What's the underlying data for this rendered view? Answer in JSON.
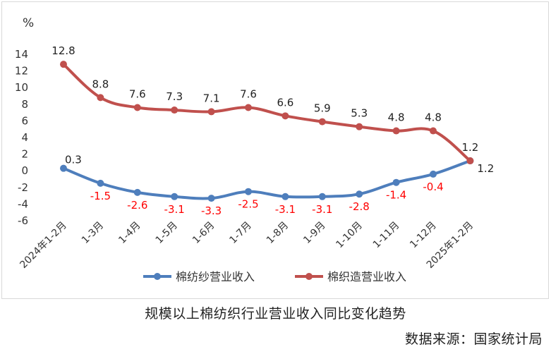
{
  "chart_data": {
    "type": "line",
    "title": "规模以上棉纺织行业营业收入同比变化趋势",
    "source": "数据来源：国家统计局",
    "ylabel": "%",
    "ylim": [
      -6,
      14
    ],
    "yticks": [
      -6,
      -4,
      -2,
      0,
      2,
      4,
      6,
      8,
      10,
      12,
      14
    ],
    "categories": [
      "2024年1-2月",
      "1-3月",
      "1-4月",
      "1-5月",
      "1-6月",
      "1-7月",
      "1-8月",
      "1-9月",
      "1-10月",
      "1-11月",
      "1-12月",
      "2025年1-2月"
    ],
    "grid": false,
    "legend_position": "bottom",
    "series": [
      {
        "name": "棉纺纱营业收入",
        "color": "#4e7ebc",
        "label_color": "#ff0000",
        "values": [
          0.3,
          -1.5,
          -2.6,
          -3.1,
          -3.3,
          -2.5,
          -3.1,
          -3.1,
          -2.8,
          -1.4,
          -0.4,
          1.2
        ],
        "labels": [
          "0.3",
          "-1.5",
          "-2.6",
          "-3.1",
          "-3.3",
          "-2.5",
          "-3.1",
          "-3.1",
          "-2.8",
          "-1.4",
          "-0.4",
          "1.2"
        ]
      },
      {
        "name": "棉织造营业收入",
        "color": "#c0504d",
        "label_color": "#222222",
        "values": [
          12.8,
          8.8,
          7.6,
          7.3,
          7.1,
          7.6,
          6.6,
          5.9,
          5.3,
          4.8,
          4.8,
          1.2
        ],
        "labels": [
          "12.8",
          "8.8",
          "7.6",
          "7.3",
          "7.1",
          "7.6",
          "6.6",
          "5.9",
          "5.3",
          "4.8",
          "4.8",
          "1.2"
        ]
      }
    ]
  }
}
